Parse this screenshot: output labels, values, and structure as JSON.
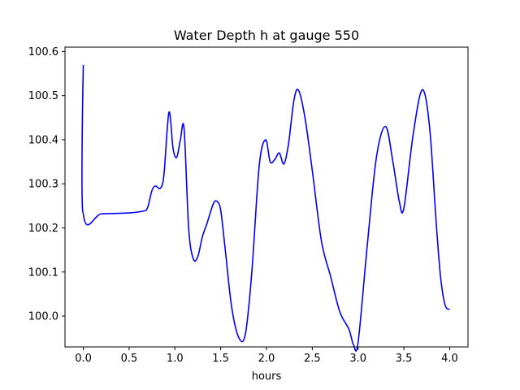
{
  "chart_data": {
    "type": "line",
    "title": "Water Depth h at gauge 550",
    "xlabel": "hours",
    "ylabel": "",
    "xlim": [
      -0.2,
      4.2
    ],
    "ylim": [
      99.93,
      100.61
    ],
    "xticks": [
      0.0,
      0.5,
      1.0,
      1.5,
      2.0,
      2.5,
      3.0,
      3.5,
      4.0
    ],
    "xtick_labels": [
      "0.0",
      "0.5",
      "1.0",
      "1.5",
      "2.0",
      "2.5",
      "3.0",
      "3.5",
      "4.0"
    ],
    "yticks": [
      100.0,
      100.1,
      100.2,
      100.3,
      100.4,
      100.5,
      100.6
    ],
    "ytick_labels": [
      "100.0",
      "100.1",
      "100.2",
      "100.3",
      "100.4",
      "100.5",
      "100.6"
    ],
    "grid": false,
    "series": [
      {
        "color": "#0000ff",
        "x": [
          0.0,
          0.0,
          0.0,
          0.2,
          0.5,
          0.65,
          0.7,
          0.75,
          0.79,
          0.84,
          0.88,
          0.935,
          0.98,
          1.02,
          1.06,
          1.1,
          1.15,
          1.2,
          1.25,
          1.3,
          1.35,
          1.42,
          1.46,
          1.5,
          1.55,
          1.62,
          1.7,
          1.77,
          1.84,
          1.92,
          1.99,
          2.04,
          2.09,
          2.14,
          2.19,
          2.24,
          2.3,
          2.35,
          2.42,
          2.5,
          2.6,
          2.7,
          2.8,
          2.9,
          2.95,
          3.0,
          3.1,
          3.2,
          3.3,
          3.38,
          3.45,
          3.5,
          3.6,
          3.7,
          3.78,
          3.85,
          3.9,
          3.95,
          4.0
        ],
        "y": [
          100.57,
          100.57,
          100.232,
          100.232,
          100.234,
          100.238,
          100.245,
          100.285,
          100.295,
          100.29,
          100.32,
          100.462,
          100.38,
          100.36,
          100.4,
          100.425,
          100.2,
          100.13,
          100.135,
          100.18,
          100.21,
          100.255,
          100.26,
          100.24,
          100.15,
          100.02,
          99.95,
          99.96,
          100.1,
          100.34,
          100.4,
          100.35,
          100.355,
          100.37,
          100.345,
          100.39,
          100.49,
          100.512,
          100.45,
          100.33,
          100.17,
          100.09,
          100.01,
          99.97,
          99.935,
          99.94,
          100.16,
          100.36,
          100.43,
          100.35,
          100.26,
          100.245,
          100.41,
          100.513,
          100.43,
          100.22,
          100.09,
          100.025,
          100.015
        ]
      }
    ]
  }
}
